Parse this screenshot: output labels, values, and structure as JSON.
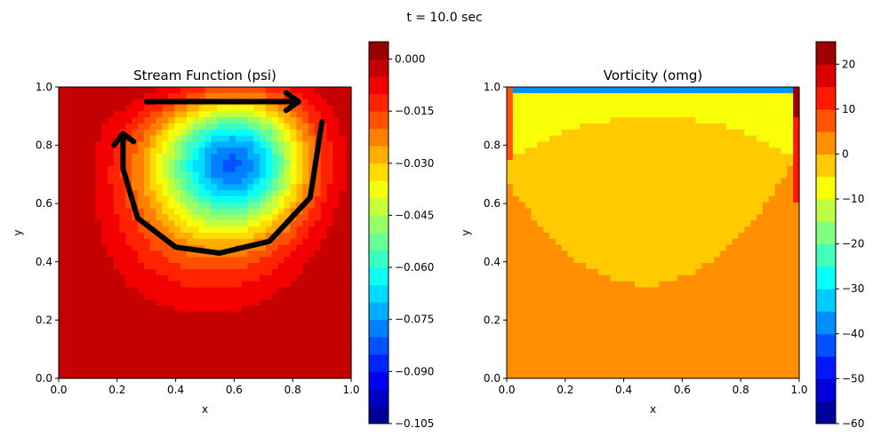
{
  "figure": {
    "suptitle": "t = 10.0 sec"
  },
  "chart_data": [
    {
      "type": "heatmap",
      "title": "Stream Function (psi)",
      "xlabel": "x",
      "ylabel": "y",
      "xlim": [
        0.0,
        1.0
      ],
      "ylim": [
        0.0,
        1.0
      ],
      "xticks": [
        "0.0",
        "0.2",
        "0.4",
        "0.6",
        "0.8",
        "1.0"
      ],
      "yticks": [
        "0.0",
        "0.2",
        "0.4",
        "0.6",
        "0.8",
        "1.0"
      ],
      "grid": false,
      "colormap": "jet",
      "value_range": [
        -0.105,
        0.005
      ],
      "colorbar_ticks": [
        "0.000",
        "−0.015",
        "−0.030",
        "−0.045",
        "−0.060",
        "−0.075",
        "−0.090",
        "−0.105"
      ],
      "colorbar_tick_values": [
        0.0,
        -0.015,
        -0.03,
        -0.045,
        -0.06,
        -0.075,
        -0.09,
        -0.105
      ],
      "vortex_center": [
        0.61,
        0.75
      ],
      "min_value": -0.105,
      "annotations": [
        {
          "kind": "arrow",
          "description": "straight arrow along top of cavity pointing right",
          "from": [
            0.3,
            0.95
          ],
          "to": [
            0.82,
            0.95
          ],
          "color": "#000000"
        },
        {
          "kind": "arrow",
          "description": "curved arrow along the circulation path pointing up-left",
          "path": [
            [
              0.9,
              0.88
            ],
            [
              0.86,
              0.62
            ],
            [
              0.72,
              0.47
            ],
            [
              0.55,
              0.43
            ],
            [
              0.4,
              0.45
            ],
            [
              0.27,
              0.55
            ],
            [
              0.22,
              0.72
            ],
            [
              0.22,
              0.84
            ]
          ],
          "color": "#000000"
        }
      ]
    },
    {
      "type": "heatmap",
      "title": "Vorticity (omg)",
      "xlabel": "x",
      "ylabel": "y",
      "xlim": [
        0.0,
        1.0
      ],
      "ylim": [
        0.0,
        1.0
      ],
      "xticks": [
        "0.0",
        "0.2",
        "0.4",
        "0.6",
        "0.8",
        "1.0"
      ],
      "yticks": [
        "0.0",
        "0.2",
        "0.4",
        "0.6",
        "0.8",
        "1.0"
      ],
      "grid": false,
      "colormap": "jet",
      "value_range": [
        -60,
        25
      ],
      "colorbar_ticks": [
        "20",
        "10",
        "0",
        "−10",
        "−20",
        "−30",
        "−40",
        "−50",
        "−60"
      ],
      "colorbar_tick_values": [
        20,
        10,
        0,
        -10,
        -20,
        -30,
        -40,
        -50,
        -60
      ],
      "regions": [
        {
          "description": "large lower region",
          "approx_value": 2.5
        },
        {
          "description": "central bowl region",
          "approx_value": -2.5
        },
        {
          "description": "upper band under the lid",
          "approx_value": -7.5
        },
        {
          "description": "thin layer at the lid with strong negative vorticity",
          "approx_value": -40
        },
        {
          "description": "upper-right corner with strong positive vorticity",
          "approx_value": 20
        }
      ]
    }
  ]
}
